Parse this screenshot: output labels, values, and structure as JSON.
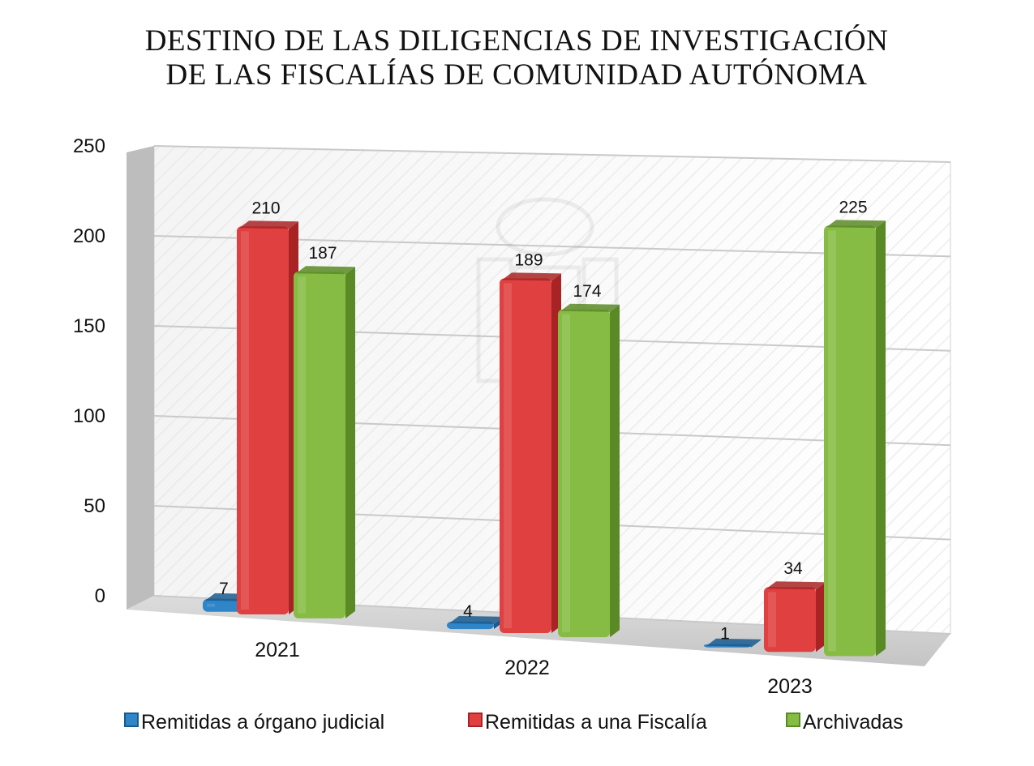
{
  "chart_data": {
    "type": "bar",
    "title_lines": [
      "DESTINO DE LAS DILIGENCIAS DE INVESTIGACIÓN",
      "DE LAS FISCALÍAS DE COMUNIDAD AUTÓNOMA"
    ],
    "categories": [
      "2021",
      "2022",
      "2023"
    ],
    "series": [
      {
        "name": "Remitidas a órgano judicial",
        "values": [
          7,
          4,
          1
        ],
        "color": "#2e86c8",
        "dark": "#1a5a8e"
      },
      {
        "name": "Remitidas a una Fiscalía",
        "values": [
          210,
          189,
          34
        ],
        "color": "#e04040",
        "dark": "#a82424"
      },
      {
        "name": "Archivadas",
        "values": [
          187,
          174,
          225
        ],
        "color": "#86bc44",
        "dark": "#5a8a26"
      }
    ],
    "y_ticks": [
      "0",
      "50",
      "100",
      "150",
      "200",
      "250"
    ],
    "ylim": [
      0,
      250
    ],
    "grid": true,
    "legend_position": "bottom",
    "style": "3d-perspective"
  }
}
